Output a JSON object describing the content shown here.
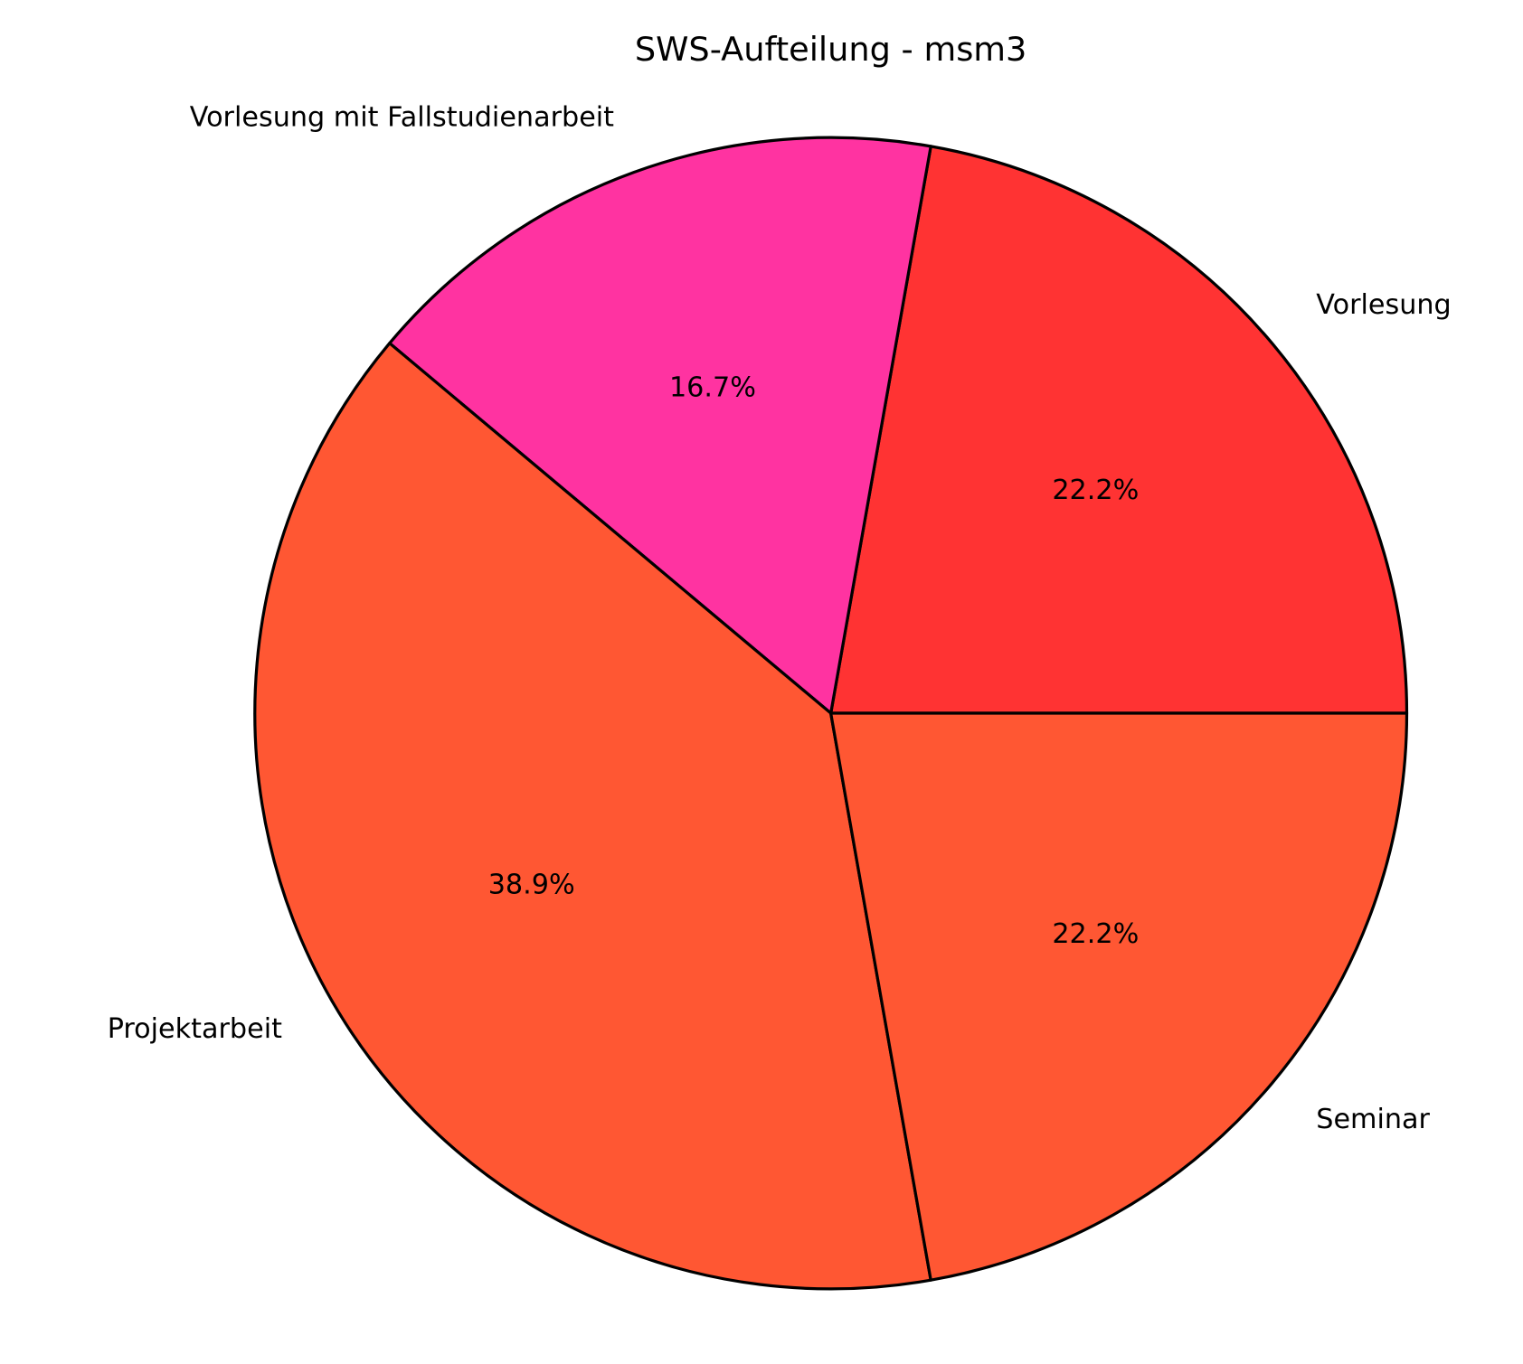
{
  "chart_data": {
    "type": "pie",
    "title": "SWS-Aufteilung - msm3",
    "start_angle_deg": 0,
    "direction": "counterclockwise",
    "slices": [
      {
        "label": "Vorlesung",
        "value": 4,
        "pct_label": "22.2%",
        "color": "#FF3333"
      },
      {
        "label": "Vorlesung mit Fallstudienarbeit",
        "value": 3,
        "pct_label": "16.7%",
        "color": "#FF33A1"
      },
      {
        "label": "Projektarbeit",
        "value": 7,
        "pct_label": "38.9%",
        "color": "#FF5733"
      },
      {
        "label": "Seminar",
        "value": 4,
        "pct_label": "22.2%",
        "color": "#FF5733"
      }
    ],
    "edge_color": "#000000"
  }
}
